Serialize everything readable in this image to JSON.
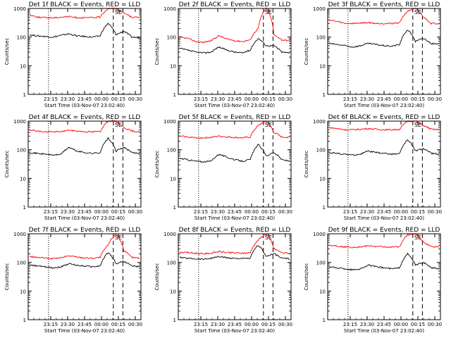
{
  "figure": {
    "ylabel": "Counts/sec",
    "xlabel": "Start Time (03-Nov-07 23:02:40)",
    "saa_marker": "SE"
  },
  "colors": {
    "events": "#000000",
    "lld": "#ff0000",
    "axes": "#000000",
    "background": "#ffffff"
  },
  "chart_data": [
    {
      "type": "line",
      "title": "Det 1f BLACK = Events, RED = LLD",
      "x_ticks": [
        "23:15",
        "23:30",
        "23:45",
        "00:00",
        "00:15",
        "00:30"
      ],
      "y_ticks": [
        "1",
        "10",
        "100",
        "1000"
      ],
      "ylim": [
        1,
        1000
      ],
      "yscale": "log",
      "series": [
        {
          "name": "Events",
          "values": [
            120,
            110,
            105,
            100,
            115,
            130,
            110,
            105,
            100,
            110,
            300,
            120,
            160,
            100,
            95
          ]
        },
        {
          "name": "LLD",
          "values": [
            600,
            500,
            480,
            470,
            500,
            520,
            480,
            470,
            480,
            500,
            1000,
            1000,
            700,
            500,
            480
          ]
        }
      ]
    },
    {
      "type": "line",
      "title": "Det 2f BLACK = Events, RED = LLD",
      "x_ticks": [
        "23:15",
        "23:30",
        "23:45",
        "00:00",
        "00:15",
        "00:30"
      ],
      "y_ticks": [
        "1",
        "10",
        "100",
        "1000"
      ],
      "ylim": [
        1,
        1000
      ],
      "yscale": "log",
      "series": [
        {
          "name": "Events",
          "values": [
            40,
            35,
            30,
            28,
            30,
            45,
            35,
            30,
            28,
            35,
            90,
            50,
            50,
            30,
            28
          ]
        },
        {
          "name": "LLD",
          "values": [
            100,
            90,
            70,
            65,
            75,
            110,
            85,
            75,
            70,
            80,
            200,
            1000,
            120,
            80,
            75
          ]
        }
      ]
    },
    {
      "type": "line",
      "title": "Det 3f BLACK = Events, RED = LLD",
      "x_ticks": [
        "23:15",
        "23:30",
        "23:45",
        "00:00",
        "00:15",
        "00:30"
      ],
      "y_ticks": [
        "1",
        "10",
        "100",
        "1000"
      ],
      "ylim": [
        1,
        1000
      ],
      "yscale": "log",
      "series": [
        {
          "name": "Events",
          "values": [
            60,
            55,
            50,
            45,
            50,
            60,
            55,
            50,
            48,
            55,
            180,
            70,
            90,
            60,
            55
          ]
        },
        {
          "name": "LLD",
          "values": [
            400,
            350,
            300,
            300,
            310,
            320,
            300,
            300,
            300,
            320,
            800,
            1000,
            500,
            300,
            300
          ]
        }
      ]
    },
    {
      "type": "line",
      "title": "Det 4f BLACK = Events, RED = LLD",
      "x_ticks": [
        "23:15",
        "23:30",
        "23:45",
        "00:00",
        "00:15",
        "00:30"
      ],
      "y_ticks": [
        "1",
        "10",
        "100",
        "1000"
      ],
      "ylim": [
        1,
        1000
      ],
      "yscale": "log",
      "series": [
        {
          "name": "Events",
          "values": [
            80,
            75,
            70,
            65,
            70,
            120,
            90,
            80,
            75,
            80,
            250,
            90,
            120,
            80,
            75
          ]
        },
        {
          "name": "LLD",
          "values": [
            500,
            450,
            420,
            420,
            430,
            480,
            450,
            430,
            420,
            440,
            1000,
            1000,
            600,
            450,
            430
          ]
        }
      ]
    },
    {
      "type": "line",
      "title": "Det 5f BLACK = Events, RED = LLD",
      "x_ticks": [
        "23:15",
        "23:30",
        "23:45",
        "00:00",
        "00:15",
        "00:30"
      ],
      "y_ticks": [
        "1",
        "10",
        "100",
        "1000"
      ],
      "ylim": [
        1,
        1000
      ],
      "yscale": "log",
      "series": [
        {
          "name": "Events",
          "values": [
            50,
            45,
            40,
            38,
            40,
            70,
            55,
            45,
            40,
            45,
            150,
            60,
            80,
            45,
            40
          ]
        },
        {
          "name": "LLD",
          "values": [
            300,
            280,
            260,
            260,
            270,
            300,
            280,
            270,
            260,
            280,
            700,
            1000,
            400,
            280,
            270
          ]
        }
      ]
    },
    {
      "type": "line",
      "title": "Det 6f BLACK = Events, RED = LLD",
      "x_ticks": [
        "23:15",
        "23:30",
        "23:45",
        "00:00",
        "00:15",
        "00:30"
      ],
      "y_ticks": [
        "1",
        "10",
        "100",
        "1000"
      ],
      "ylim": [
        1,
        1000
      ],
      "yscale": "log",
      "series": [
        {
          "name": "Events",
          "values": [
            80,
            75,
            70,
            65,
            70,
            90,
            80,
            75,
            70,
            75,
            220,
            90,
            110,
            75,
            70
          ]
        },
        {
          "name": "LLD",
          "values": [
            600,
            550,
            500,
            500,
            520,
            550,
            520,
            500,
            500,
            520,
            1000,
            1000,
            700,
            520,
            500
          ]
        }
      ]
    },
    {
      "type": "line",
      "title": "Det 7f BLACK = Events, RED = LLD",
      "x_ticks": [
        "23:15",
        "23:30",
        "23:45",
        "00:00",
        "00:15",
        "00:30"
      ],
      "y_ticks": [
        "1",
        "10",
        "100",
        "1000"
      ],
      "ylim": [
        1,
        1000
      ],
      "yscale": "log",
      "series": [
        {
          "name": "Events",
          "values": [
            80,
            75,
            70,
            65,
            70,
            90,
            80,
            75,
            70,
            75,
            220,
            90,
            110,
            75,
            70
          ]
        },
        {
          "name": "LLD",
          "values": [
            160,
            150,
            140,
            135,
            145,
            170,
            155,
            145,
            140,
            150,
            400,
            1000,
            250,
            150,
            140
          ]
        }
      ]
    },
    {
      "type": "line",
      "title": "Det 8f BLACK = Events, RED = LLD",
      "x_ticks": [
        "23:15",
        "23:30",
        "23:45",
        "00:00",
        "00:15",
        "00:30"
      ],
      "y_ticks": [
        "1",
        "10",
        "100",
        "1000"
      ],
      "ylim": [
        1,
        1000
      ],
      "yscale": "log",
      "series": [
        {
          "name": "Events",
          "values": [
            150,
            140,
            135,
            130,
            140,
            160,
            145,
            140,
            135,
            140,
            400,
            160,
            200,
            140,
            135
          ]
        },
        {
          "name": "LLD",
          "values": [
            230,
            220,
            210,
            200,
            210,
            240,
            220,
            215,
            210,
            220,
            600,
            1000,
            300,
            220,
            210
          ]
        }
      ]
    },
    {
      "type": "line",
      "title": "Det 9f BLACK = Events, RED = LLD",
      "x_ticks": [
        "23:15",
        "23:30",
        "23:45",
        "00:00",
        "00:15",
        "00:30"
      ],
      "y_ticks": [
        "1",
        "10",
        "100",
        "1000"
      ],
      "ylim": [
        1,
        1000
      ],
      "yscale": "log",
      "series": [
        {
          "name": "Events",
          "values": [
            70,
            65,
            60,
            55,
            60,
            80,
            70,
            65,
            60,
            65,
            200,
            80,
            100,
            65,
            60
          ]
        },
        {
          "name": "LLD",
          "values": [
            400,
            380,
            350,
            340,
            350,
            380,
            360,
            350,
            340,
            360,
            900,
            1000,
            500,
            360,
            350
          ]
        }
      ]
    }
  ]
}
